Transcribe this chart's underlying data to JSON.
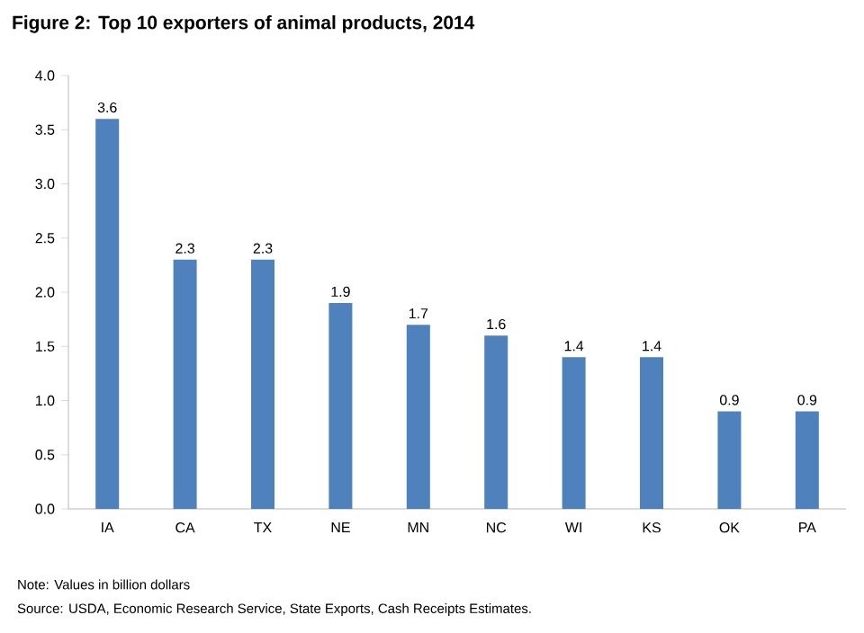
{
  "chart_data": {
    "type": "bar",
    "title": "Figure 2: Top 10 exporters of animal products, 2014",
    "categories": [
      "IA",
      "CA",
      "TX",
      "NE",
      "MN",
      "NC",
      "WI",
      "KS",
      "OK",
      "PA"
    ],
    "values": [
      3.6,
      2.3,
      2.3,
      1.9,
      1.7,
      1.6,
      1.4,
      1.4,
      0.9,
      0.9
    ],
    "color": "#4f81bd",
    "ylim": [
      0,
      4
    ],
    "yticks": [
      {
        "value": 0,
        "label": "0.0"
      },
      {
        "value": 0.5,
        "label": "0.5"
      },
      {
        "value": 1,
        "label": "1.0"
      },
      {
        "value": 1.5,
        "label": "1.5"
      },
      {
        "value": 2,
        "label": "2.0"
      },
      {
        "value": 2.5,
        "label": "2.5"
      },
      {
        "value": 3,
        "label": "3.0"
      },
      {
        "value": 3.5,
        "label": "3.5"
      },
      {
        "value": 4,
        "label": "4.0"
      }
    ],
    "data_labels": true,
    "grid": false,
    "annotations": [
      "Note: Values in billion dollars",
      "Source:  USDA, Economic Research Service, State Exports, Cash Receipts Estimates."
    ]
  }
}
